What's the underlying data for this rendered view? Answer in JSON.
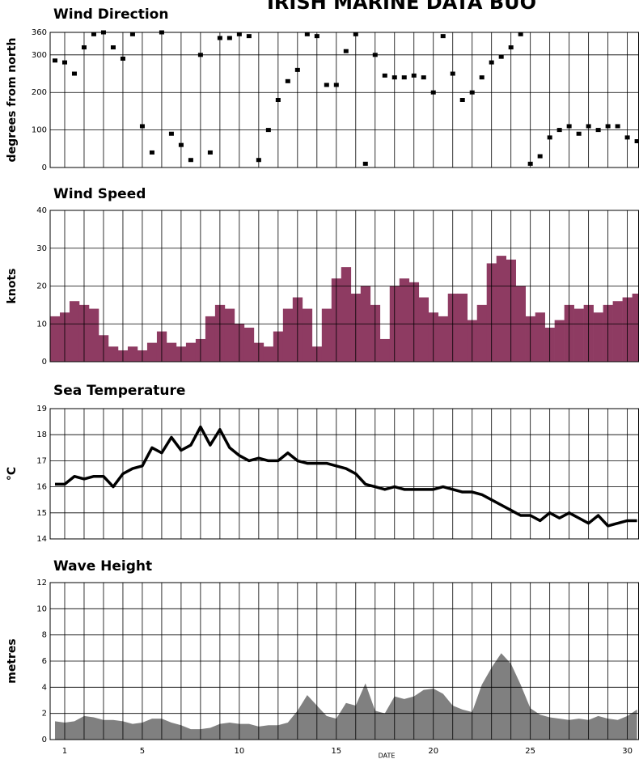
{
  "header": {
    "title": "IRISH MARINE DATA BUO"
  },
  "chart_data": [
    {
      "type": "scatter",
      "title": "Wind Direction",
      "y_label": "degrees from north",
      "color": "#000000",
      "x": [
        0.5,
        1,
        1.5,
        2,
        2.5,
        3,
        3.5,
        4,
        4.5,
        5,
        5.5,
        6,
        6.5,
        7,
        7.5,
        8,
        8.5,
        9,
        9.5,
        10,
        10.5,
        11,
        11.5,
        12,
        12.5,
        13,
        13.5,
        14,
        14.5,
        15,
        15.5,
        16,
        16.5,
        17,
        17.5,
        18,
        18.5,
        19,
        19.5,
        20,
        20.5,
        21,
        21.5,
        22,
        22.5,
        23,
        23.5,
        24,
        24.5,
        25,
        25.5,
        26,
        26.5,
        27,
        27.5,
        28,
        28.5,
        29,
        29.5,
        30,
        30.5
      ],
      "values": [
        285,
        280,
        250,
        320,
        355,
        360,
        320,
        290,
        355,
        110,
        40,
        360,
        90,
        60,
        20,
        300,
        40,
        345,
        345,
        355,
        350,
        20,
        100,
        180,
        230,
        260,
        355,
        350,
        220,
        220,
        310,
        355,
        10,
        300,
        245,
        240,
        240,
        245,
        240,
        200,
        350,
        250,
        180,
        200,
        240,
        280,
        295,
        320,
        355,
        10,
        30,
        80,
        100,
        110,
        90,
        110,
        100,
        110,
        110,
        80,
        70
      ],
      "xlim": [
        0.25,
        30.6
      ],
      "xgrid": [
        1,
        2,
        3,
        4,
        5,
        6,
        7,
        8,
        9,
        10,
        11,
        12,
        13,
        14,
        15,
        16,
        17,
        18,
        19,
        20,
        21,
        22,
        23,
        24,
        25,
        26,
        27,
        28,
        29,
        30
      ],
      "ylim": [
        0,
        360
      ],
      "yticks": [
        0,
        100,
        200,
        300,
        360
      ]
    },
    {
      "type": "bar",
      "title": "Wind Speed",
      "y_label": "knots",
      "color": "#8e3b62",
      "x": [
        0.5,
        1,
        1.5,
        2,
        2.5,
        3,
        3.5,
        4,
        4.5,
        5,
        5.5,
        6,
        6.5,
        7,
        7.5,
        8,
        8.5,
        9,
        9.5,
        10,
        10.5,
        11,
        11.5,
        12,
        12.5,
        13,
        13.5,
        14,
        14.5,
        15,
        15.5,
        16,
        16.5,
        17,
        17.5,
        18,
        18.5,
        19,
        19.5,
        20,
        20.5,
        21,
        21.5,
        22,
        22.5,
        23,
        23.5,
        24,
        24.5,
        25,
        25.5,
        26,
        26.5,
        27,
        27.5,
        28,
        28.5,
        29,
        29.5,
        30,
        30.5
      ],
      "values": [
        12,
        13,
        16,
        15,
        14,
        7,
        4,
        3,
        4,
        3,
        5,
        8,
        5,
        4,
        5,
        6,
        12,
        15,
        14,
        10,
        9,
        5,
        4,
        8,
        14,
        17,
        14,
        4,
        14,
        22,
        25,
        18,
        20,
        15,
        6,
        20,
        22,
        21,
        17,
        13,
        12,
        18,
        18,
        11,
        15,
        26,
        28,
        27,
        20,
        12,
        13,
        9,
        11,
        15,
        14,
        15,
        13,
        15,
        16,
        17,
        18
      ],
      "xlim": [
        0.25,
        30.6
      ],
      "xgrid": [
        1,
        2,
        3,
        4,
        5,
        6,
        7,
        8,
        9,
        10,
        11,
        12,
        13,
        14,
        15,
        16,
        17,
        18,
        19,
        20,
        21,
        22,
        23,
        24,
        25,
        26,
        27,
        28,
        29,
        30
      ],
      "ylim": [
        0,
        40
      ],
      "yticks": [
        0,
        10,
        20,
        30,
        40
      ]
    },
    {
      "type": "line",
      "title": "Sea Temperature",
      "y_label": "°C",
      "color": "#000000",
      "x": [
        0.5,
        1,
        1.5,
        2,
        2.5,
        3,
        3.5,
        4,
        4.5,
        5,
        5.5,
        6,
        6.5,
        7,
        7.5,
        8,
        8.5,
        9,
        9.5,
        10,
        10.5,
        11,
        11.5,
        12,
        12.5,
        13,
        13.5,
        14,
        14.5,
        15,
        15.5,
        16,
        16.5,
        17,
        17.5,
        18,
        18.5,
        19,
        19.5,
        20,
        20.5,
        21,
        21.5,
        22,
        22.5,
        23,
        23.5,
        24,
        24.5,
        25,
        25.5,
        26,
        26.5,
        27,
        27.5,
        28,
        28.5,
        29,
        29.5,
        30,
        30.5
      ],
      "values": [
        16.1,
        16.1,
        16.4,
        16.3,
        16.4,
        16.4,
        16.0,
        16.5,
        16.7,
        16.8,
        17.5,
        17.3,
        17.9,
        17.4,
        17.6,
        18.3,
        17.6,
        18.2,
        17.5,
        17.2,
        17.0,
        17.1,
        17.0,
        17.0,
        17.3,
        17.0,
        16.9,
        16.9,
        16.9,
        16.8,
        16.7,
        16.5,
        16.1,
        16.0,
        15.9,
        16.0,
        15.9,
        15.9,
        15.9,
        15.9,
        16.0,
        15.9,
        15.8,
        15.8,
        15.7,
        15.5,
        15.3,
        15.1,
        14.9,
        14.9,
        14.7,
        15.0,
        14.8,
        15.0,
        14.8,
        14.6,
        14.9,
        14.5,
        14.6,
        14.7,
        14.7
      ],
      "xlim": [
        0.25,
        30.6
      ],
      "xgrid": [
        1,
        2,
        3,
        4,
        5,
        6,
        7,
        8,
        9,
        10,
        11,
        12,
        13,
        14,
        15,
        16,
        17,
        18,
        19,
        20,
        21,
        22,
        23,
        24,
        25,
        26,
        27,
        28,
        29,
        30
      ],
      "ylim": [
        14,
        19
      ],
      "yticks": [
        14,
        15,
        16,
        17,
        18,
        19
      ]
    },
    {
      "type": "area",
      "title": "Wave Height",
      "y_label": "metres",
      "x_label": "Date",
      "color": "#808080",
      "x": [
        0.5,
        1,
        1.5,
        2,
        2.5,
        3,
        3.5,
        4,
        4.5,
        5,
        5.5,
        6,
        6.5,
        7,
        7.5,
        8,
        8.5,
        9,
        9.5,
        10,
        10.5,
        11,
        11.5,
        12,
        12.5,
        13,
        13.5,
        14,
        14.5,
        15,
        15.5,
        16,
        16.5,
        17,
        17.5,
        18,
        18.5,
        19,
        19.5,
        20,
        20.5,
        21,
        21.5,
        22,
        22.5,
        23,
        23.5,
        24,
        24.5,
        25,
        25.5,
        26,
        26.5,
        27,
        27.5,
        28,
        28.5,
        29,
        29.5,
        30,
        30.5
      ],
      "values": [
        1.4,
        1.3,
        1.4,
        1.8,
        1.7,
        1.5,
        1.5,
        1.4,
        1.2,
        1.3,
        1.6,
        1.6,
        1.3,
        1.1,
        0.8,
        0.8,
        0.9,
        1.2,
        1.3,
        1.2,
        1.2,
        1.0,
        1.1,
        1.1,
        1.3,
        2.2,
        3.4,
        2.6,
        1.8,
        1.6,
        2.8,
        2.6,
        4.3,
        2.2,
        2.0,
        3.3,
        3.1,
        3.3,
        3.8,
        3.9,
        3.5,
        2.6,
        2.3,
        2.1,
        4.2,
        5.5,
        6.6,
        5.8,
        4.2,
        2.4,
        1.9,
        1.7,
        1.6,
        1.5,
        1.6,
        1.5,
        1.8,
        1.6,
        1.5,
        1.8,
        2.3
      ],
      "xlim": [
        0.25,
        30.6
      ],
      "xticks": [
        1,
        5,
        10,
        15,
        20,
        25,
        30
      ],
      "xgrid": [
        1,
        2,
        3,
        4,
        5,
        6,
        7,
        8,
        9,
        10,
        11,
        12,
        13,
        14,
        15,
        16,
        17,
        18,
        19,
        20,
        21,
        22,
        23,
        24,
        25,
        26,
        27,
        28,
        29,
        30
      ],
      "ylim": [
        0,
        12
      ],
      "yticks": [
        0,
        2,
        4,
        6,
        8,
        10,
        12
      ]
    }
  ]
}
